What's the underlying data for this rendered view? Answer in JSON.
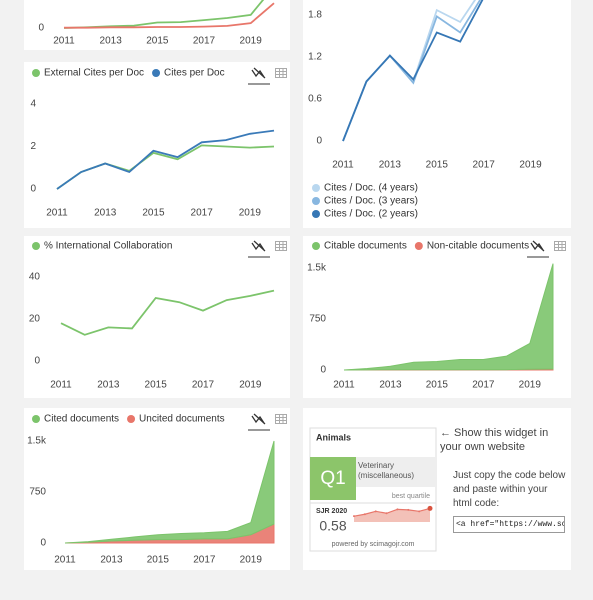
{
  "chart_data": [
    {
      "type": "line",
      "x": [
        2011,
        2012,
        2013,
        2014,
        2015,
        2016,
        2017,
        2018,
        2019,
        2020
      ],
      "xlim": [
        2011,
        2020
      ],
      "xticks": [
        2011,
        2013,
        2015,
        2017,
        2019
      ],
      "ylim": [
        0,
        40
      ],
      "yticks": [
        0
      ],
      "series": [
        {
          "color": "#7cc46b",
          "values": [
            0,
            0.2,
            0.5,
            0.7,
            1.6,
            1.7,
            2.3,
            2.9,
            3.8,
            12
          ]
        },
        {
          "color": "#e8766a",
          "values": [
            0.1,
            0.1,
            0.2,
            0.2,
            0.3,
            0.3,
            0.4,
            0.6,
            1.4,
            7.2
          ]
        }
      ]
    },
    {
      "type": "line",
      "x": [
        2011,
        2012,
        2013,
        2014,
        2015,
        2016,
        2017,
        2018,
        2019,
        2020
      ],
      "xlim": [
        2011,
        2020
      ],
      "xticks": [
        2011,
        2013,
        2015,
        2017,
        2019
      ],
      "ylim": [
        0,
        4
      ],
      "yticks": [
        0,
        2,
        4
      ],
      "series": [
        {
          "name": "External Cites per Doc",
          "color": "#7cc46b",
          "values": [
            0,
            0.8,
            1.2,
            0.85,
            1.7,
            1.4,
            2.05,
            2.0,
            1.95,
            2.0
          ]
        },
        {
          "name": "Cites per Doc",
          "color": "#3a7ab8",
          "values": [
            0,
            0.8,
            1.2,
            0.8,
            1.8,
            1.5,
            2.2,
            2.3,
            2.6,
            2.75
          ]
        }
      ]
    },
    {
      "type": "line",
      "x": [
        2011,
        2012,
        2013,
        2014,
        2015,
        2016,
        2017,
        2018,
        2019,
        2020
      ],
      "xlim": [
        2011,
        2020
      ],
      "xticks": [
        2011,
        2013,
        2015,
        2017,
        2019
      ],
      "ylim": [
        0,
        2.4
      ],
      "yticks": [
        0,
        0.6,
        1.2,
        1.8
      ],
      "series": [
        {
          "name": "Cites / Doc. (4 years)",
          "color": "#b9d7ef",
          "values": [
            0,
            0.85,
            1.22,
            0.85,
            1.87,
            1.7,
            2.2,
            null,
            null,
            null
          ]
        },
        {
          "name": "Cites / Doc. (3 years)",
          "color": "#88b7e0",
          "values": [
            0,
            0.85,
            1.22,
            0.83,
            1.78,
            1.55,
            2.1,
            null,
            null,
            null
          ]
        },
        {
          "name": "Cites / Doc. (2 years)",
          "color": "#3677b5",
          "values": [
            0,
            0.85,
            1.22,
            0.88,
            1.55,
            1.42,
            2.05,
            null,
            null,
            null
          ]
        }
      ]
    },
    {
      "type": "line",
      "x": [
        2011,
        2012,
        2013,
        2014,
        2015,
        2016,
        2017,
        2018,
        2019,
        2020
      ],
      "xlim": [
        2011,
        2020
      ],
      "xticks": [
        2011,
        2013,
        2015,
        2017,
        2019
      ],
      "ylim": [
        0,
        40
      ],
      "yticks": [
        0,
        20,
        40
      ],
      "series": [
        {
          "name": "% International Collaboration",
          "color": "#7cc46b",
          "values": [
            18,
            12.5,
            16,
            15.5,
            30,
            28,
            24,
            29,
            31,
            33.5
          ]
        }
      ]
    },
    {
      "type": "area",
      "x": [
        2011,
        2012,
        2013,
        2014,
        2015,
        2016,
        2017,
        2018,
        2019,
        2020
      ],
      "xlim": [
        2011,
        2020
      ],
      "xticks": [
        2011,
        2013,
        2015,
        2017,
        2019
      ],
      "ylim": [
        0,
        1500
      ],
      "yticks": [
        0,
        750,
        {
          "value": 1500,
          "label": "1.5k"
        }
      ],
      "series": [
        {
          "name": "Citable documents",
          "color": "#7cc46b",
          "values": [
            0,
            20,
            50,
            110,
            120,
            150,
            150,
            200,
            380,
            1550
          ]
        },
        {
          "name": "Non-citable documents",
          "color": "#e8766a",
          "values": [
            0,
            2,
            5,
            5,
            5,
            5,
            5,
            5,
            10,
            15
          ]
        }
      ]
    },
    {
      "type": "area",
      "x": [
        2011,
        2012,
        2013,
        2014,
        2015,
        2016,
        2017,
        2018,
        2019,
        2020
      ],
      "xlim": [
        2011,
        2020
      ],
      "xticks": [
        2011,
        2013,
        2015,
        2017,
        2019
      ],
      "ylim": [
        0,
        1500
      ],
      "yticks": [
        0,
        750,
        {
          "value": 1500,
          "label": "1.5k"
        }
      ],
      "series": [
        {
          "name": "Cited documents",
          "color": "#7cc46b",
          "values": [
            0,
            10,
            25,
            50,
            70,
            90,
            90,
            110,
            180,
            1220
          ]
        },
        {
          "name": "Uncited documents",
          "color": "#e8766a",
          "values": [
            0,
            10,
            30,
            40,
            50,
            50,
            60,
            60,
            120,
            280
          ]
        }
      ]
    }
  ],
  "widget": {
    "journal": "Animals",
    "quartile": "Q1",
    "category": "Veterinary (miscellaneous)",
    "quartile_note": "best quartile",
    "sjr_label": "SJR 2020",
    "sjr_value": 0.58,
    "sparkline": {
      "values": [
        0.42,
        0.46,
        0.52,
        0.48,
        0.56,
        0.55,
        0.52,
        0.58
      ],
      "ylim": [
        0.3,
        0.65
      ]
    },
    "powered_by": "powered by scimagojr.com"
  },
  "share": {
    "heading": "← Show this widget in your own website",
    "instructions": "Just copy the code below and paste within your html code:",
    "code": "<a href=\"https://www.scimag"
  }
}
